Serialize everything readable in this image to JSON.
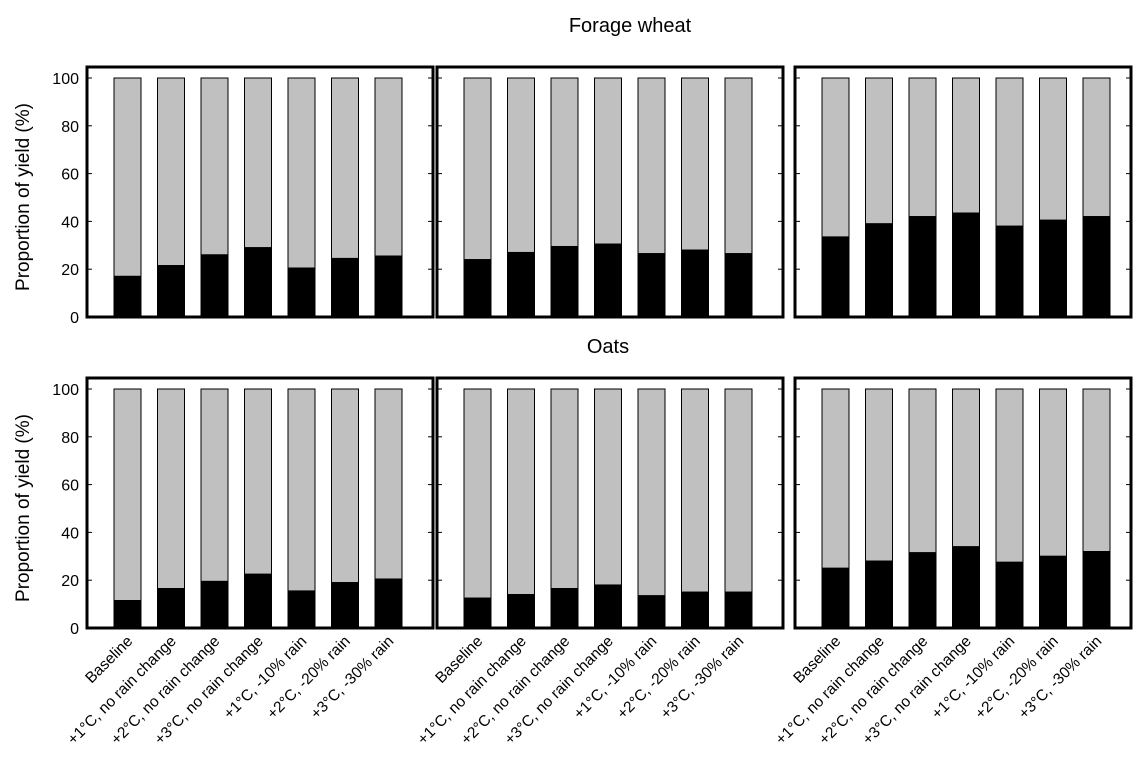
{
  "chart_data": {
    "type": "bar",
    "stacked": true,
    "ylabel": "Proportion of yield (%)",
    "ylim": [
      0,
      100
    ],
    "yticks": [
      0,
      20,
      40,
      60,
      80,
      100
    ],
    "categories": [
      "Baseline",
      "+1°C, no rain change",
      "+2°C, no rain change",
      "+3°C, no rain change",
      "+1°C, -10% rain",
      "+2°C, -20% rain",
      "+3°C, -30% rain"
    ],
    "colors": {
      "lower": "#000000",
      "upper": "#c0c0c0"
    },
    "rows": [
      {
        "title": "Forage wheat",
        "panels": [
          {
            "values": [
              17,
              21.5,
              26,
              29,
              20.5,
              24.5,
              25.5
            ]
          },
          {
            "values": [
              24,
              27,
              29.5,
              30.5,
              26.5,
              28,
              26.5
            ]
          },
          {
            "values": [
              33.5,
              39,
              42,
              43.5,
              38,
              40.5,
              42
            ]
          }
        ]
      },
      {
        "title": "Oats",
        "panels": [
          {
            "values": [
              11.5,
              16.5,
              19.5,
              22.5,
              15.5,
              19,
              20.5
            ]
          },
          {
            "values": [
              12.5,
              14,
              16.5,
              18,
              13.5,
              15,
              15
            ]
          },
          {
            "values": [
              25,
              28,
              31.5,
              34,
              27.5,
              30,
              32
            ]
          }
        ]
      }
    ]
  }
}
